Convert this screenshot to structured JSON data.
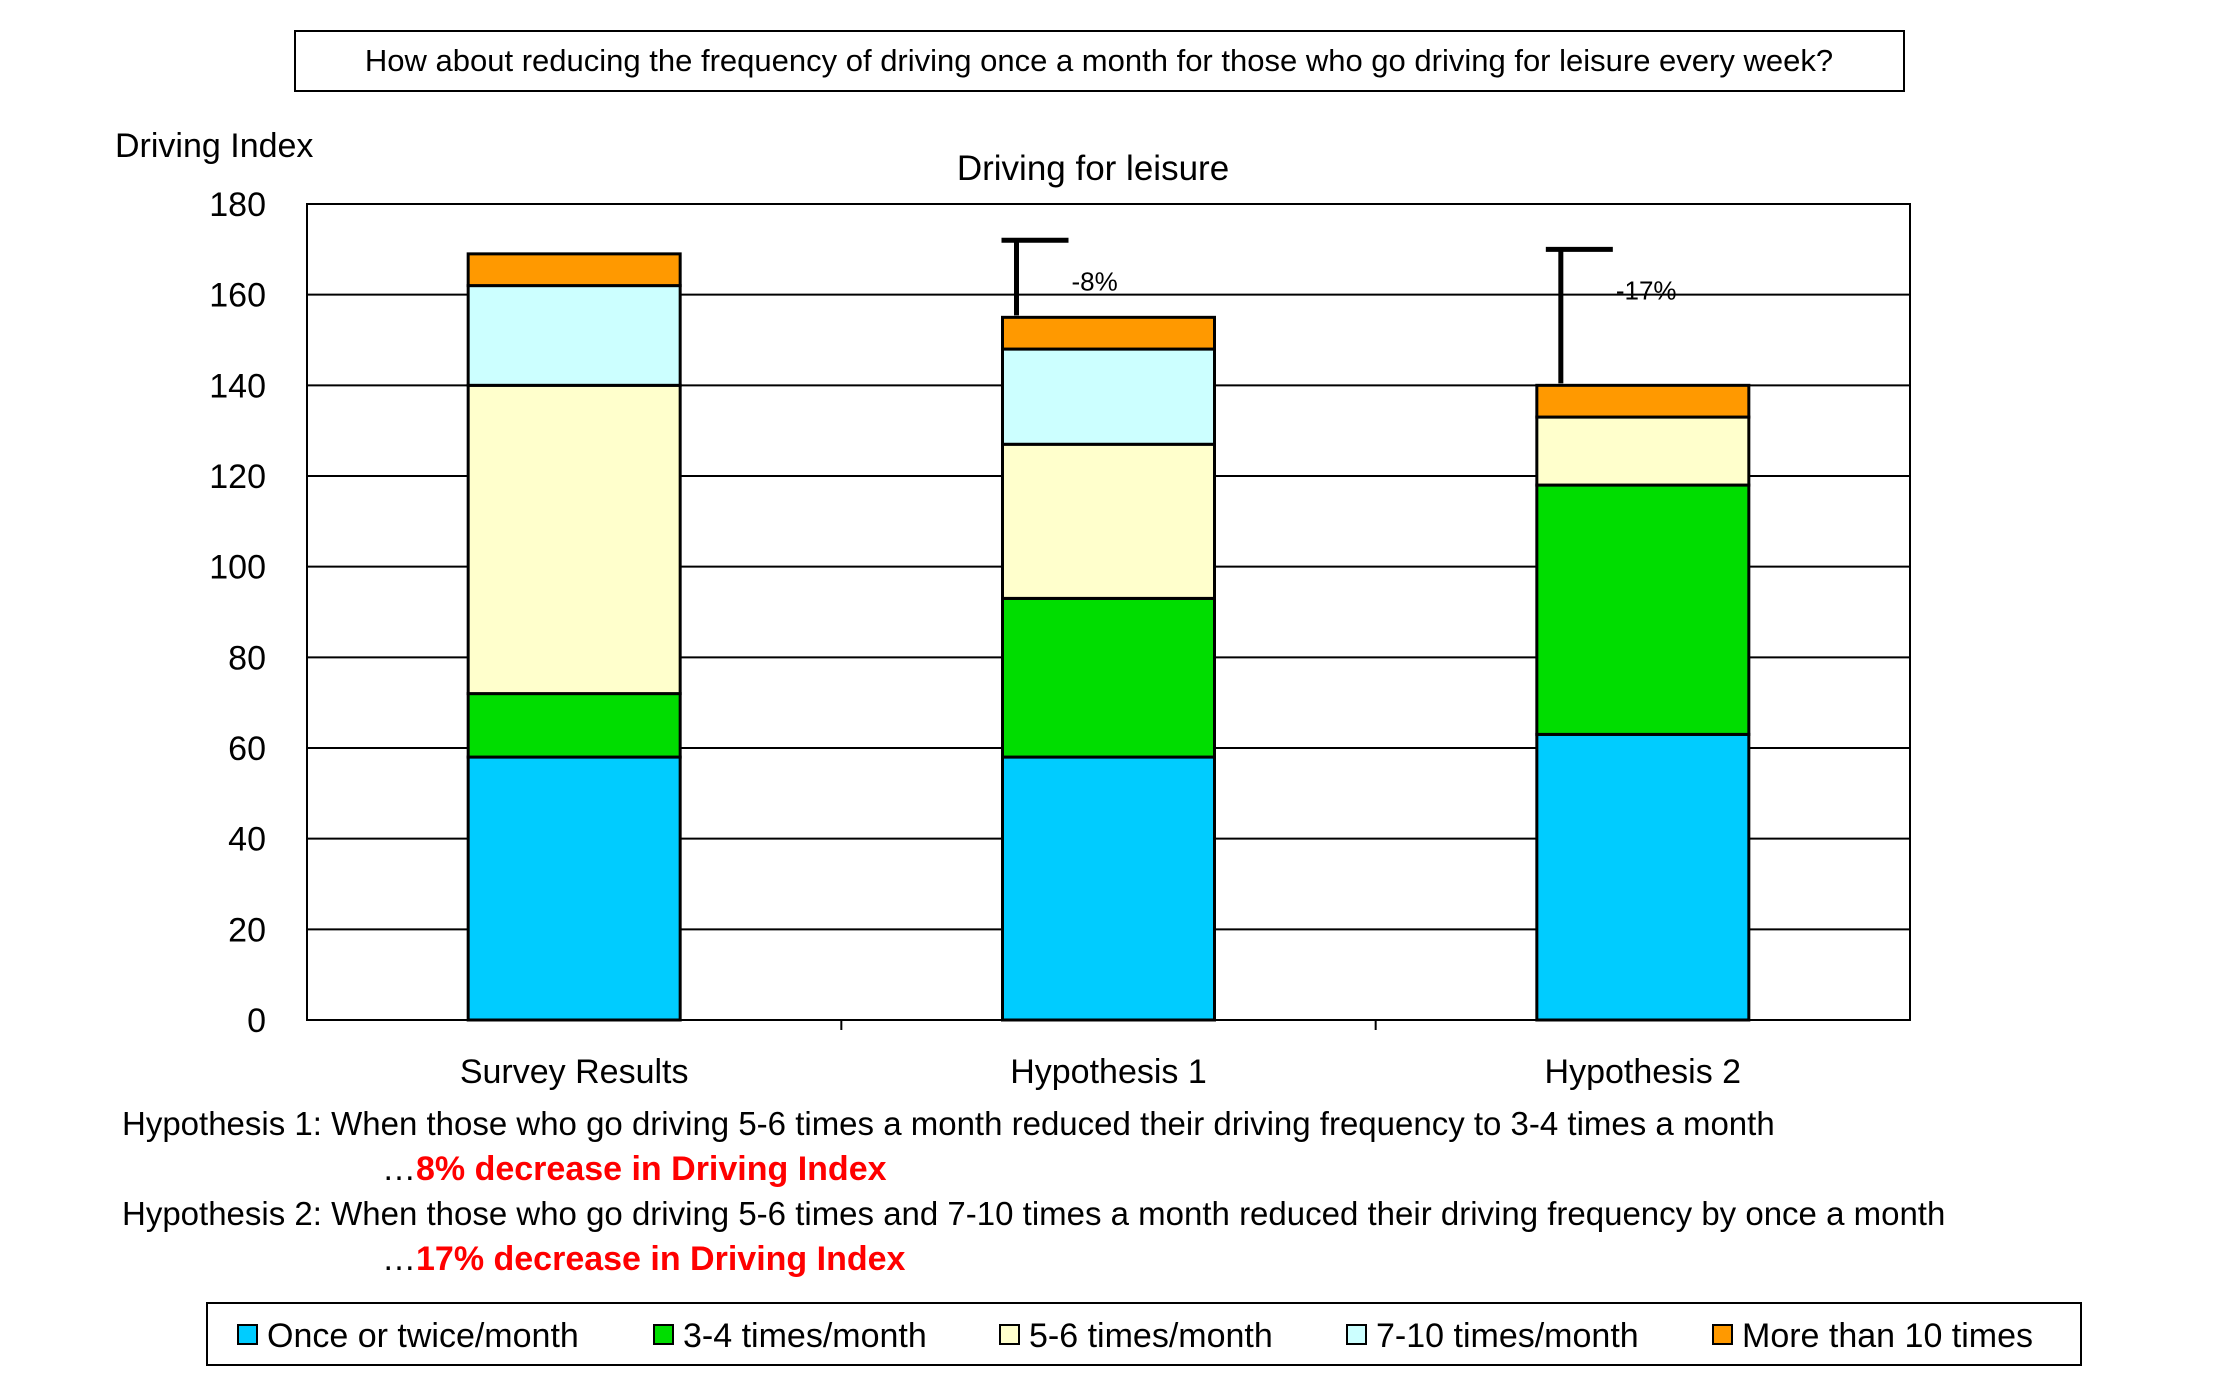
{
  "chart_data": {
    "type": "bar",
    "stacked": true,
    "header_question": "How about reducing the frequency of driving once a month for those who go driving for leisure every week?",
    "title": "Driving for leisure",
    "ylabel": "Driving Index",
    "xlabel": "",
    "ylim": [
      0,
      180
    ],
    "ytick_step": 20,
    "grid": true,
    "legend_position": "bottom",
    "categories": [
      "Survey Results",
      "Hypothesis 1",
      "Hypothesis 2"
    ],
    "series": [
      {
        "name": "Once or twice/month",
        "color": "#00ccff",
        "values": [
          58,
          58,
          63
        ]
      },
      {
        "name": "3-4 times/month",
        "color": "#00dd00",
        "values": [
          14,
          35,
          55
        ]
      },
      {
        "name": "5-6 times/month",
        "color": "#ffffcc",
        "values": [
          68,
          34,
          15
        ]
      },
      {
        "name": "7-10 times/month",
        "color": "#ccffff",
        "values": [
          22,
          21,
          0
        ]
      },
      {
        "name": "More than 10 times",
        "color": "#ff9900",
        "values": [
          7,
          7,
          7
        ]
      }
    ],
    "annotations": [
      {
        "category": "Hypothesis 1",
        "label": "-8%",
        "reference_value": 172
      },
      {
        "category": "Hypothesis 2",
        "label": "-17%",
        "reference_value": 170
      }
    ]
  },
  "notes": [
    {
      "text": "Hypothesis 1: When those who go driving 5-6 times a month reduced their driving frequency to 3-4 times a month",
      "prefix": "…",
      "result": "8% decrease in Driving Index"
    },
    {
      "text": "Hypothesis 2: When those who go driving 5-6 times and 7-10 times a month reduced their driving frequency by once a month",
      "prefix": "…",
      "result": "17% decrease in Driving Index"
    }
  ]
}
